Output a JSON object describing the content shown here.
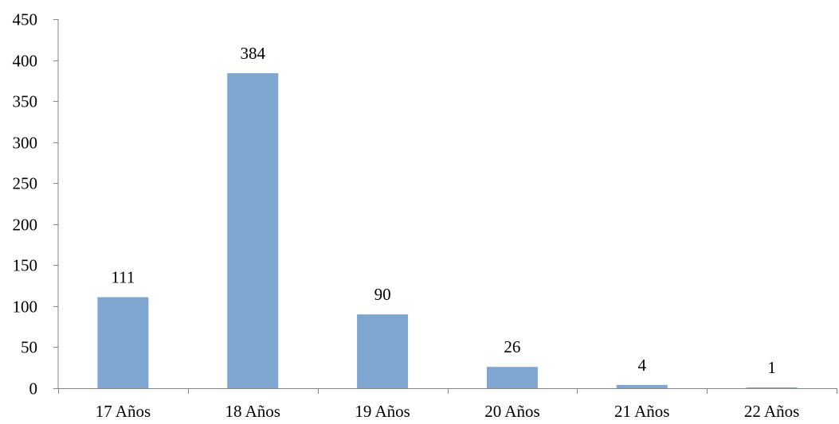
{
  "chart_data": {
    "type": "bar",
    "categories": [
      "17 Años",
      "18 Años",
      "19 Años",
      "20 Años",
      "21 Años",
      "22 Años"
    ],
    "values": [
      111,
      384,
      90,
      26,
      4,
      1
    ],
    "data_labels": [
      "111",
      "384",
      "90",
      "26",
      "4",
      "1"
    ],
    "title": "",
    "xlabel": "",
    "ylabel": "",
    "ylim": [
      0,
      450
    ],
    "yticks": [
      0,
      50,
      100,
      150,
      200,
      250,
      300,
      350,
      400,
      450
    ],
    "ytick_labels": [
      "0",
      "50",
      "100",
      "150",
      "200",
      "250",
      "300",
      "350",
      "400",
      "450"
    ],
    "grid": false,
    "legend": "none",
    "bar_color": "#7fa6d0",
    "axis_color": "#868686"
  }
}
